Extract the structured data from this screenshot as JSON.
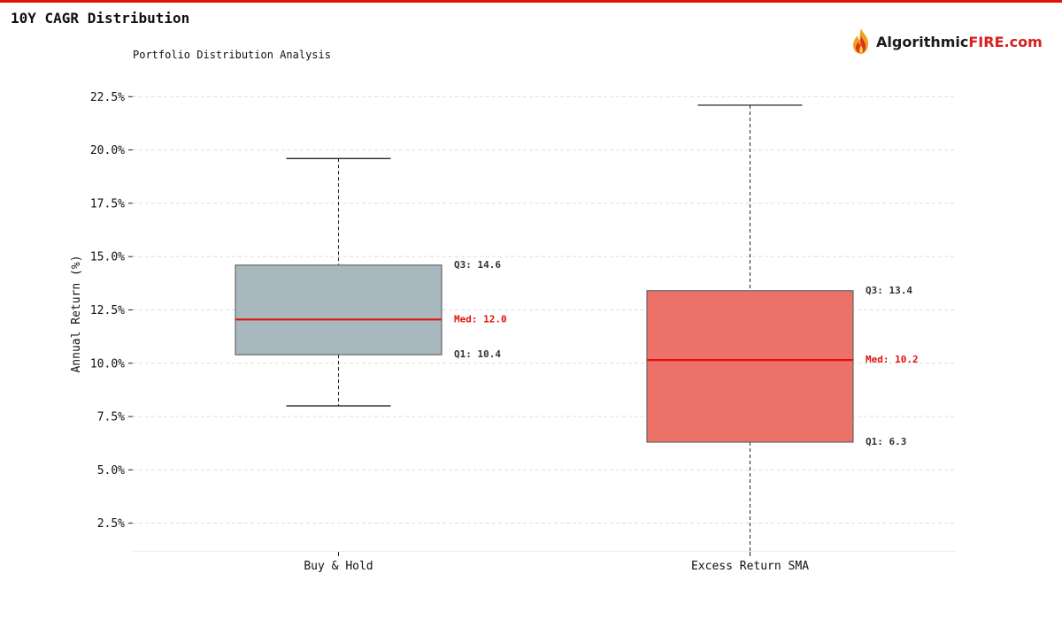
{
  "header": {
    "title": "10Y CAGR Distribution",
    "accent_color": "#e0120b"
  },
  "brand": {
    "part1": "Algorithmic",
    "part2": "FIRE",
    "part3": ".com",
    "icon": "flame-logo-icon"
  },
  "chart_data": {
    "type": "boxplot",
    "title": "",
    "subtitle": "Portfolio Distribution Analysis",
    "xlabel": "",
    "ylabel": "Annual Return (%)",
    "ylim": [
      1.2,
      23.3
    ],
    "yticks": [
      2.5,
      5.0,
      7.5,
      10.0,
      12.5,
      15.0,
      17.5,
      20.0,
      22.5
    ],
    "ytick_format": "%",
    "grid": true,
    "categories": [
      "Buy & Hold",
      "Excess Return SMA"
    ],
    "series": [
      {
        "category": "Buy & Hold",
        "whisker_low": 8.0,
        "q1": 10.4,
        "median": 12.05,
        "q3": 14.6,
        "whisker_high": 19.6,
        "color": "#a9b8bf",
        "labels": {
          "q3": "Q3: 14.6",
          "median": "Med: 12.0",
          "q1": "Q1: 10.4"
        }
      },
      {
        "category": "Excess Return SMA",
        "whisker_low": 1.2,
        "q1": 6.3,
        "median": 10.15,
        "q3": 13.4,
        "whisker_high": 22.1,
        "color": "#ec7168",
        "labels": {
          "q3": "Q3: 13.4",
          "median": "Med: 10.2",
          "q1": "Q1: 6.3"
        }
      }
    ],
    "median_color": "#e0120b",
    "label_color": "#333333"
  }
}
